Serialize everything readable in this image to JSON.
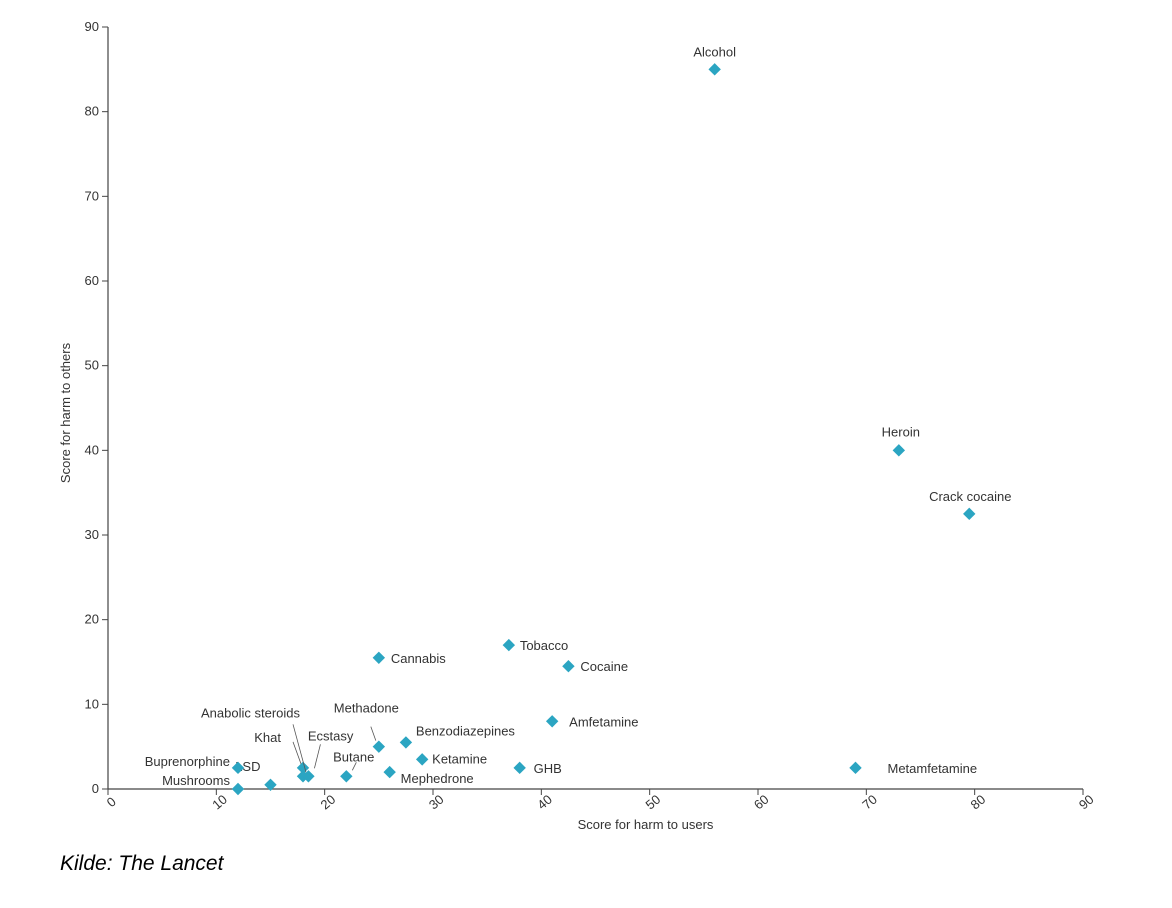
{
  "source": "Kilde: The Lancet",
  "chart_data": {
    "type": "scatter",
    "title": "",
    "xlabel": "Score for harm to users",
    "ylabel": "Score for harm to others",
    "xlim": [
      0,
      90
    ],
    "ylim": [
      0,
      90
    ],
    "x_ticks": [
      0,
      10,
      20,
      30,
      40,
      50,
      60,
      70,
      80,
      90
    ],
    "y_ticks": [
      0,
      10,
      20,
      30,
      40,
      50,
      60,
      70,
      80,
      90
    ],
    "grid": false,
    "legend": "none",
    "marker": "diamond",
    "marker_color": "#2ba5c2",
    "points": [
      {
        "label": "Alcohol",
        "x": 56,
        "y": 85
      },
      {
        "label": "Heroin",
        "x": 73,
        "y": 40
      },
      {
        "label": "Crack cocaine",
        "x": 79.5,
        "y": 32.5
      },
      {
        "label": "Metamfetamine",
        "x": 69,
        "y": 2.5
      },
      {
        "label": "Tobacco",
        "x": 37,
        "y": 17
      },
      {
        "label": "Cocaine",
        "x": 42.5,
        "y": 14.5
      },
      {
        "label": "Cannabis",
        "x": 25,
        "y": 15.5
      },
      {
        "label": "Amfetamine",
        "x": 41,
        "y": 8
      },
      {
        "label": "GHB",
        "x": 38,
        "y": 2.5
      },
      {
        "label": "Benzodiazepines",
        "x": 27.5,
        "y": 5.5
      },
      {
        "label": "Ketamine",
        "x": 29,
        "y": 3.5
      },
      {
        "label": "Methadone",
        "x": 25,
        "y": 5
      },
      {
        "label": "Mephedrone",
        "x": 26,
        "y": 2
      },
      {
        "label": "Butane",
        "x": 22,
        "y": 1.5
      },
      {
        "label": "Khat",
        "x": 18,
        "y": 2.5
      },
      {
        "label": "Anabolic steroids",
        "x": 18,
        "y": 1.5
      },
      {
        "label": "Ecstasy",
        "x": 18.5,
        "y": 1.5
      },
      {
        "label": "LSD",
        "x": 15,
        "y": 0.5
      },
      {
        "label": "Buprenorphine",
        "x": 12,
        "y": 2.5
      },
      {
        "label": "Mushrooms",
        "x": 12,
        "y": 0
      }
    ]
  }
}
